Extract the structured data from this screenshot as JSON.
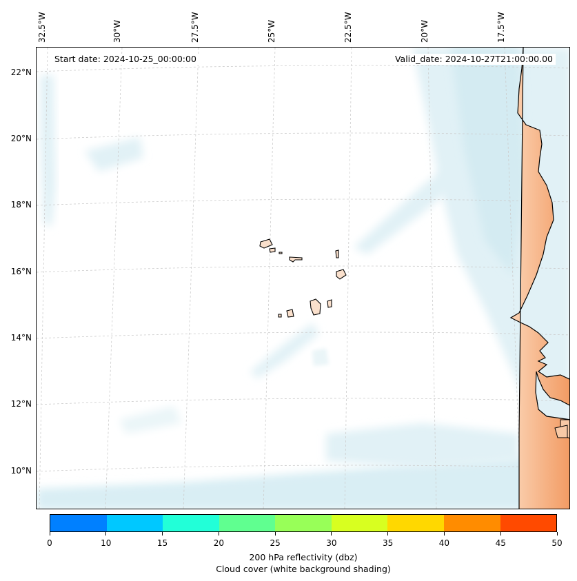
{
  "map": {
    "longitude_labels": [
      "32.5°W",
      "30°W",
      "27.5°W",
      "25°W",
      "22.5°W",
      "20°W",
      "17.5°W"
    ],
    "latitude_labels": [
      "22°N",
      "20°N",
      "18°N",
      "16°N",
      "14°N",
      "12°N",
      "10°N"
    ],
    "start_date": "Start date: 2024-10-25_00:00:00",
    "valid_date": "Valid_date: 2024-10-27T21:00:00.00"
  },
  "colorbar": {
    "tick_labels": [
      "0",
      "10",
      "15",
      "20",
      "25",
      "30",
      "35",
      "40",
      "45",
      "50"
    ],
    "colors": [
      "#0080ff",
      "#00c8ff",
      "#22ffd8",
      "#60ff90",
      "#98ff58",
      "#d8ff20",
      "#ffd800",
      "#ff8c00",
      "#ff4a00"
    ],
    "title": "200 hPa reflectivity (dbz)",
    "subtitle": "Cloud cover (white background shading)"
  },
  "colors": {
    "land": "#f6b48a",
    "land_dark": "#f2a070",
    "cloud_light": "#e3f2f7",
    "cloud_medium": "#cfe8f0",
    "gridline": "#cccccc"
  }
}
